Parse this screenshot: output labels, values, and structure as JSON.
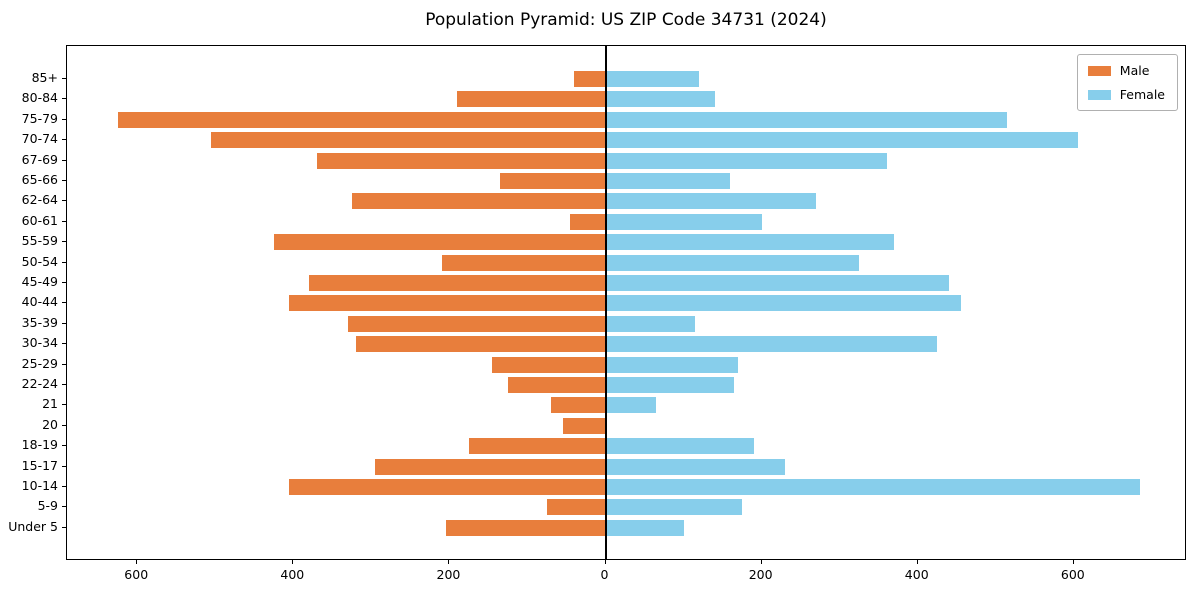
{
  "chart": {
    "title": "Population Pyramid: US ZIP Code 34731 (2024)"
  },
  "chart_data": {
    "type": "bar",
    "subtype": "population-pyramid",
    "title": "Population Pyramid: US ZIP Code 34731 (2024)",
    "xlabel": "",
    "ylabel": "",
    "grid": false,
    "legend_position": "upper right",
    "zero_line": true,
    "xlim": [
      -690,
      745
    ],
    "x_tick_values": [
      -600,
      -400,
      -200,
      0,
      200,
      400,
      600
    ],
    "x_tick_labels": [
      "600",
      "400",
      "200",
      "0",
      "200",
      "400",
      "600"
    ],
    "categories": [
      "85+",
      "80-84",
      "75-79",
      "70-74",
      "67-69",
      "65-66",
      "62-64",
      "60-61",
      "55-59",
      "50-54",
      "45-49",
      "40-44",
      "35-39",
      "30-34",
      "25-29",
      "22-24",
      "21",
      "20",
      "18-19",
      "15-17",
      "10-14",
      "5-9",
      "Under 5"
    ],
    "series": [
      {
        "name": "Male",
        "side": "left",
        "color": "#E87E3C",
        "values": [
          40,
          190,
          625,
          505,
          370,
          135,
          325,
          45,
          425,
          210,
          380,
          405,
          330,
          320,
          145,
          125,
          70,
          55,
          175,
          295,
          405,
          75,
          205
        ]
      },
      {
        "name": "Female",
        "side": "right",
        "color": "#87CEEB",
        "values": [
          120,
          140,
          515,
          605,
          360,
          160,
          270,
          200,
          370,
          325,
          440,
          455,
          115,
          425,
          170,
          165,
          65,
          0,
          190,
          230,
          685,
          175,
          100
        ]
      }
    ],
    "colors": {
      "male": "#E87E3C",
      "female": "#87CEEB",
      "axis": "#000000",
      "background": "#ffffff"
    }
  }
}
